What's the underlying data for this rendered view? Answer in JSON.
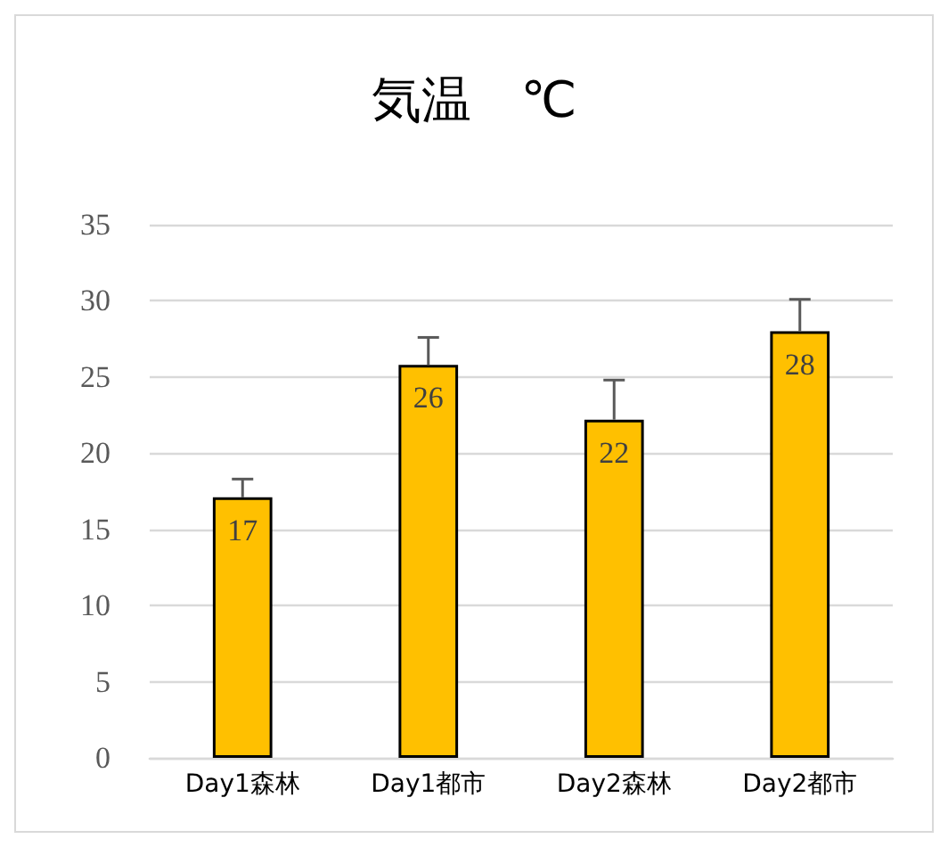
{
  "chart_data": {
    "type": "bar",
    "title": "気温　℃",
    "categories": [
      "Day1森林",
      "Day1都市",
      "Day2森林",
      "Day2都市"
    ],
    "values": [
      17.1,
      25.8,
      22.2,
      28.0
    ],
    "value_labels": [
      "17",
      "26",
      "22",
      "28"
    ],
    "errors": [
      [
        17.1,
        18.3
      ],
      [
        25.8,
        27.6
      ],
      [
        22.2,
        24.8
      ],
      [
        28.0,
        30.1
      ]
    ],
    "color": "#ffc000",
    "ylim": [
      0,
      35
    ],
    "yticks": [
      0,
      5,
      10,
      15,
      20,
      25,
      30,
      35
    ],
    "grid": "y"
  }
}
